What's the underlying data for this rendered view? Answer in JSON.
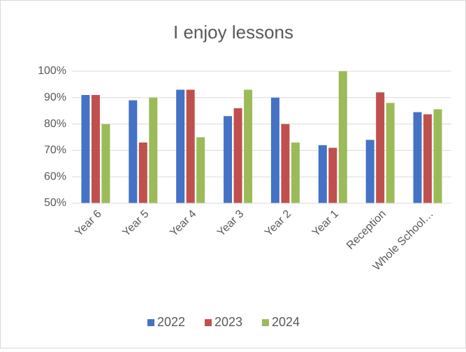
{
  "chart_data": {
    "type": "bar",
    "title": "I enjoy lessons",
    "categories": [
      "Year 6",
      "Year 5",
      "Year 4",
      "Year 3",
      "Year 2",
      "Year 1",
      "Reception",
      "Whole School…"
    ],
    "series": [
      {
        "name": "2022",
        "color": "#4472c4",
        "values": [
          91,
          89,
          93,
          83,
          90,
          72,
          74,
          84.5
        ]
      },
      {
        "name": "2023",
        "color": "#c0504d",
        "values": [
          91,
          73,
          93,
          86,
          80,
          71,
          92,
          83.7
        ]
      },
      {
        "name": "2024",
        "color": "#9bbb59",
        "values": [
          80,
          90,
          75,
          93,
          73,
          100,
          88,
          85.6
        ]
      }
    ],
    "ylim": [
      50,
      100
    ],
    "yticks": [
      {
        "value": 50,
        "label": "50%"
      },
      {
        "value": 60,
        "label": "60%"
      },
      {
        "value": 70,
        "label": "70%"
      },
      {
        "value": 80,
        "label": "80%"
      },
      {
        "value": 90,
        "label": "90%"
      },
      {
        "value": 100,
        "label": "100%"
      }
    ],
    "grid": true,
    "legend": "bottom"
  }
}
